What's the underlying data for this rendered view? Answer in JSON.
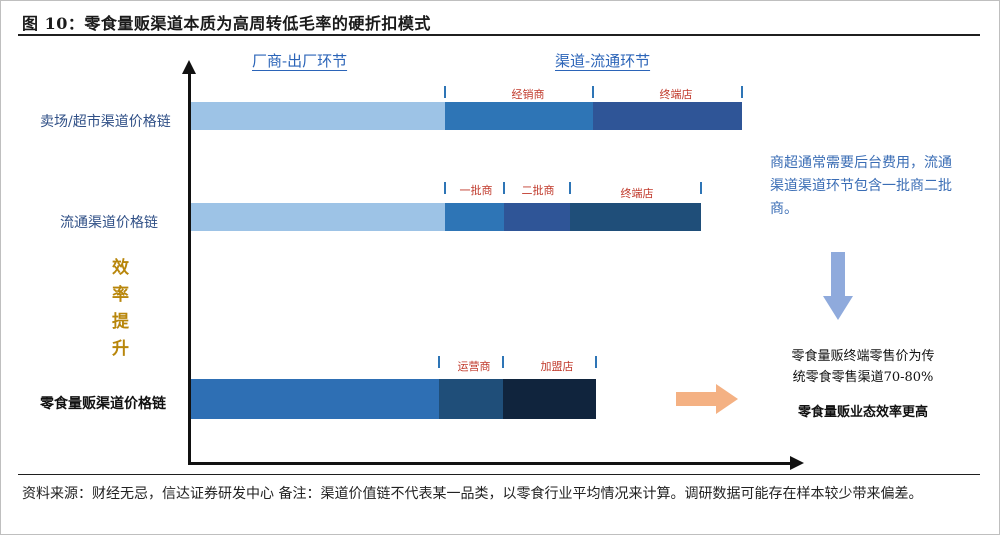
{
  "title": "图 10：零食量贩渠道本质为高周转低毛率的硬折扣模式",
  "stages": {
    "factory": "厂商-出厂环节",
    "channel": "渠道-流通环节"
  },
  "rows": {
    "supermarket": {
      "label": "卖场/超市渠道价格链",
      "segments": [
        "经销商",
        "终端店"
      ]
    },
    "distribution": {
      "label": "流通渠道价格链",
      "segments": [
        "一批商",
        "二批商",
        "终端店"
      ]
    },
    "snack": {
      "label": "零食量贩渠道价格链",
      "segments": [
        "运营商",
        "加盟店"
      ]
    }
  },
  "efficiency": [
    "效",
    "率",
    "提",
    "升"
  ],
  "note": "商超通常需要后台费用，流通渠道渠道环节包含一批商二批商。",
  "result": {
    "line1": "零食量贩终端零售价为传",
    "line2": "统零食零售渠道70-80%",
    "conclusion": "零食量贩业态效率更高"
  },
  "source": "资料来源：财经无忌，信达证券研发中心    备注：渠道价值链不代表某一品类，以零食行业平均情况来计算。调研数据可能存在样本较少带来偏差。",
  "colors": {
    "factory_light": "#9dc3e6",
    "mid_blue": "#2e75b6",
    "dark_blue": "#2f5597",
    "navy": "#1f4e79",
    "deep_navy": "#10243d",
    "snack_blue": "#2e6fb4",
    "snack_dark": "#1f4e79",
    "arrow_blue": "#8faadc",
    "arrow_orange": "#f4b183"
  }
}
